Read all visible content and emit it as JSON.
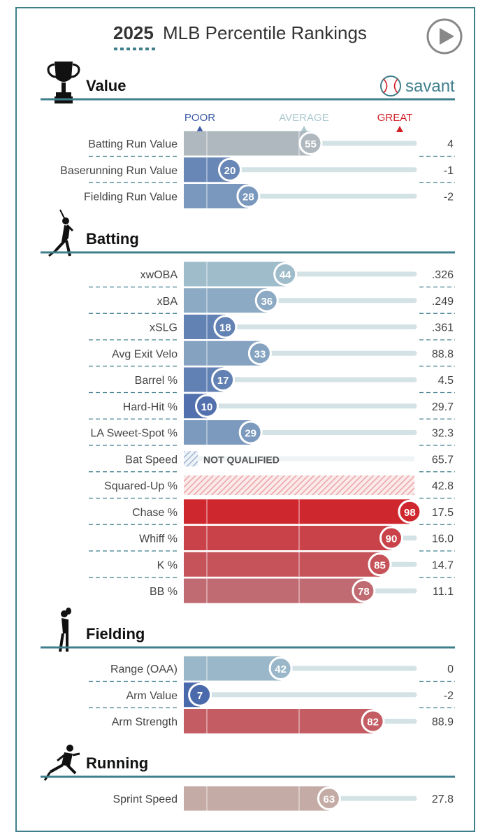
{
  "header": {
    "year": "2025",
    "title": "MLB Percentile Rankings",
    "play_icon": "play-icon",
    "brand": "savant",
    "brand_icon": "baseball-icon"
  },
  "scale": {
    "poor": "POOR",
    "average": "AVERAGE",
    "great": "GREAT",
    "not_qualified": "NOT QUALIFIED"
  },
  "colors": {
    "accent": "#3f7f8c",
    "poor": "#3b5aa5",
    "great": "#d12027",
    "avg_blue": "#abc9cf",
    "running": "#c4aba5",
    "track": "#d3e2e5",
    "text": "#333333"
  },
  "chart_data": {
    "type": "bar",
    "title": "2025 MLB Percentile Rankings",
    "xlim": [
      0,
      100
    ],
    "sections": [
      {
        "name": "Value",
        "icon": "trophy-icon",
        "rows": [
          {
            "label": "Batting Run Value",
            "percentile": 55,
            "value": "4"
          },
          {
            "label": "Baserunning Run Value",
            "percentile": 20,
            "value": "-1"
          },
          {
            "label": "Fielding Run Value",
            "percentile": 28,
            "value": "-2"
          }
        ]
      },
      {
        "name": "Batting",
        "icon": "batter-icon",
        "rows": [
          {
            "label": "xwOBA",
            "percentile": 44,
            "value": ".326"
          },
          {
            "label": "xBA",
            "percentile": 36,
            "value": ".249"
          },
          {
            "label": "xSLG",
            "percentile": 18,
            "value": ".361"
          },
          {
            "label": "Avg Exit Velo",
            "percentile": 33,
            "value": "88.8"
          },
          {
            "label": "Barrel %",
            "percentile": 17,
            "value": "4.5"
          },
          {
            "label": "Hard-Hit %",
            "percentile": 10,
            "value": "29.7"
          },
          {
            "label": "LA Sweet-Spot %",
            "percentile": 29,
            "value": "32.3"
          },
          {
            "label": "Bat Speed",
            "percentile": null,
            "status": "not_qualified",
            "value": "65.7"
          },
          {
            "label": "Squared-Up %",
            "percentile": null,
            "status": "hatched",
            "value": "42.8"
          },
          {
            "label": "Chase %",
            "percentile": 98,
            "value": "17.5"
          },
          {
            "label": "Whiff %",
            "percentile": 90,
            "value": "16.0"
          },
          {
            "label": "K %",
            "percentile": 85,
            "value": "14.7"
          },
          {
            "label": "BB %",
            "percentile": 78,
            "value": "11.1"
          }
        ]
      },
      {
        "name": "Fielding",
        "icon": "fielder-icon",
        "rows": [
          {
            "label": "Range (OAA)",
            "percentile": 42,
            "value": "0"
          },
          {
            "label": "Arm Value",
            "percentile": 7,
            "value": "-2"
          },
          {
            "label": "Arm Strength",
            "percentile": 82,
            "value": "88.9"
          }
        ]
      },
      {
        "name": "Running",
        "icon": "runner-icon",
        "neutral": true,
        "rows": [
          {
            "label": "Sprint Speed",
            "percentile": 63,
            "value": "27.8"
          }
        ]
      }
    ]
  }
}
